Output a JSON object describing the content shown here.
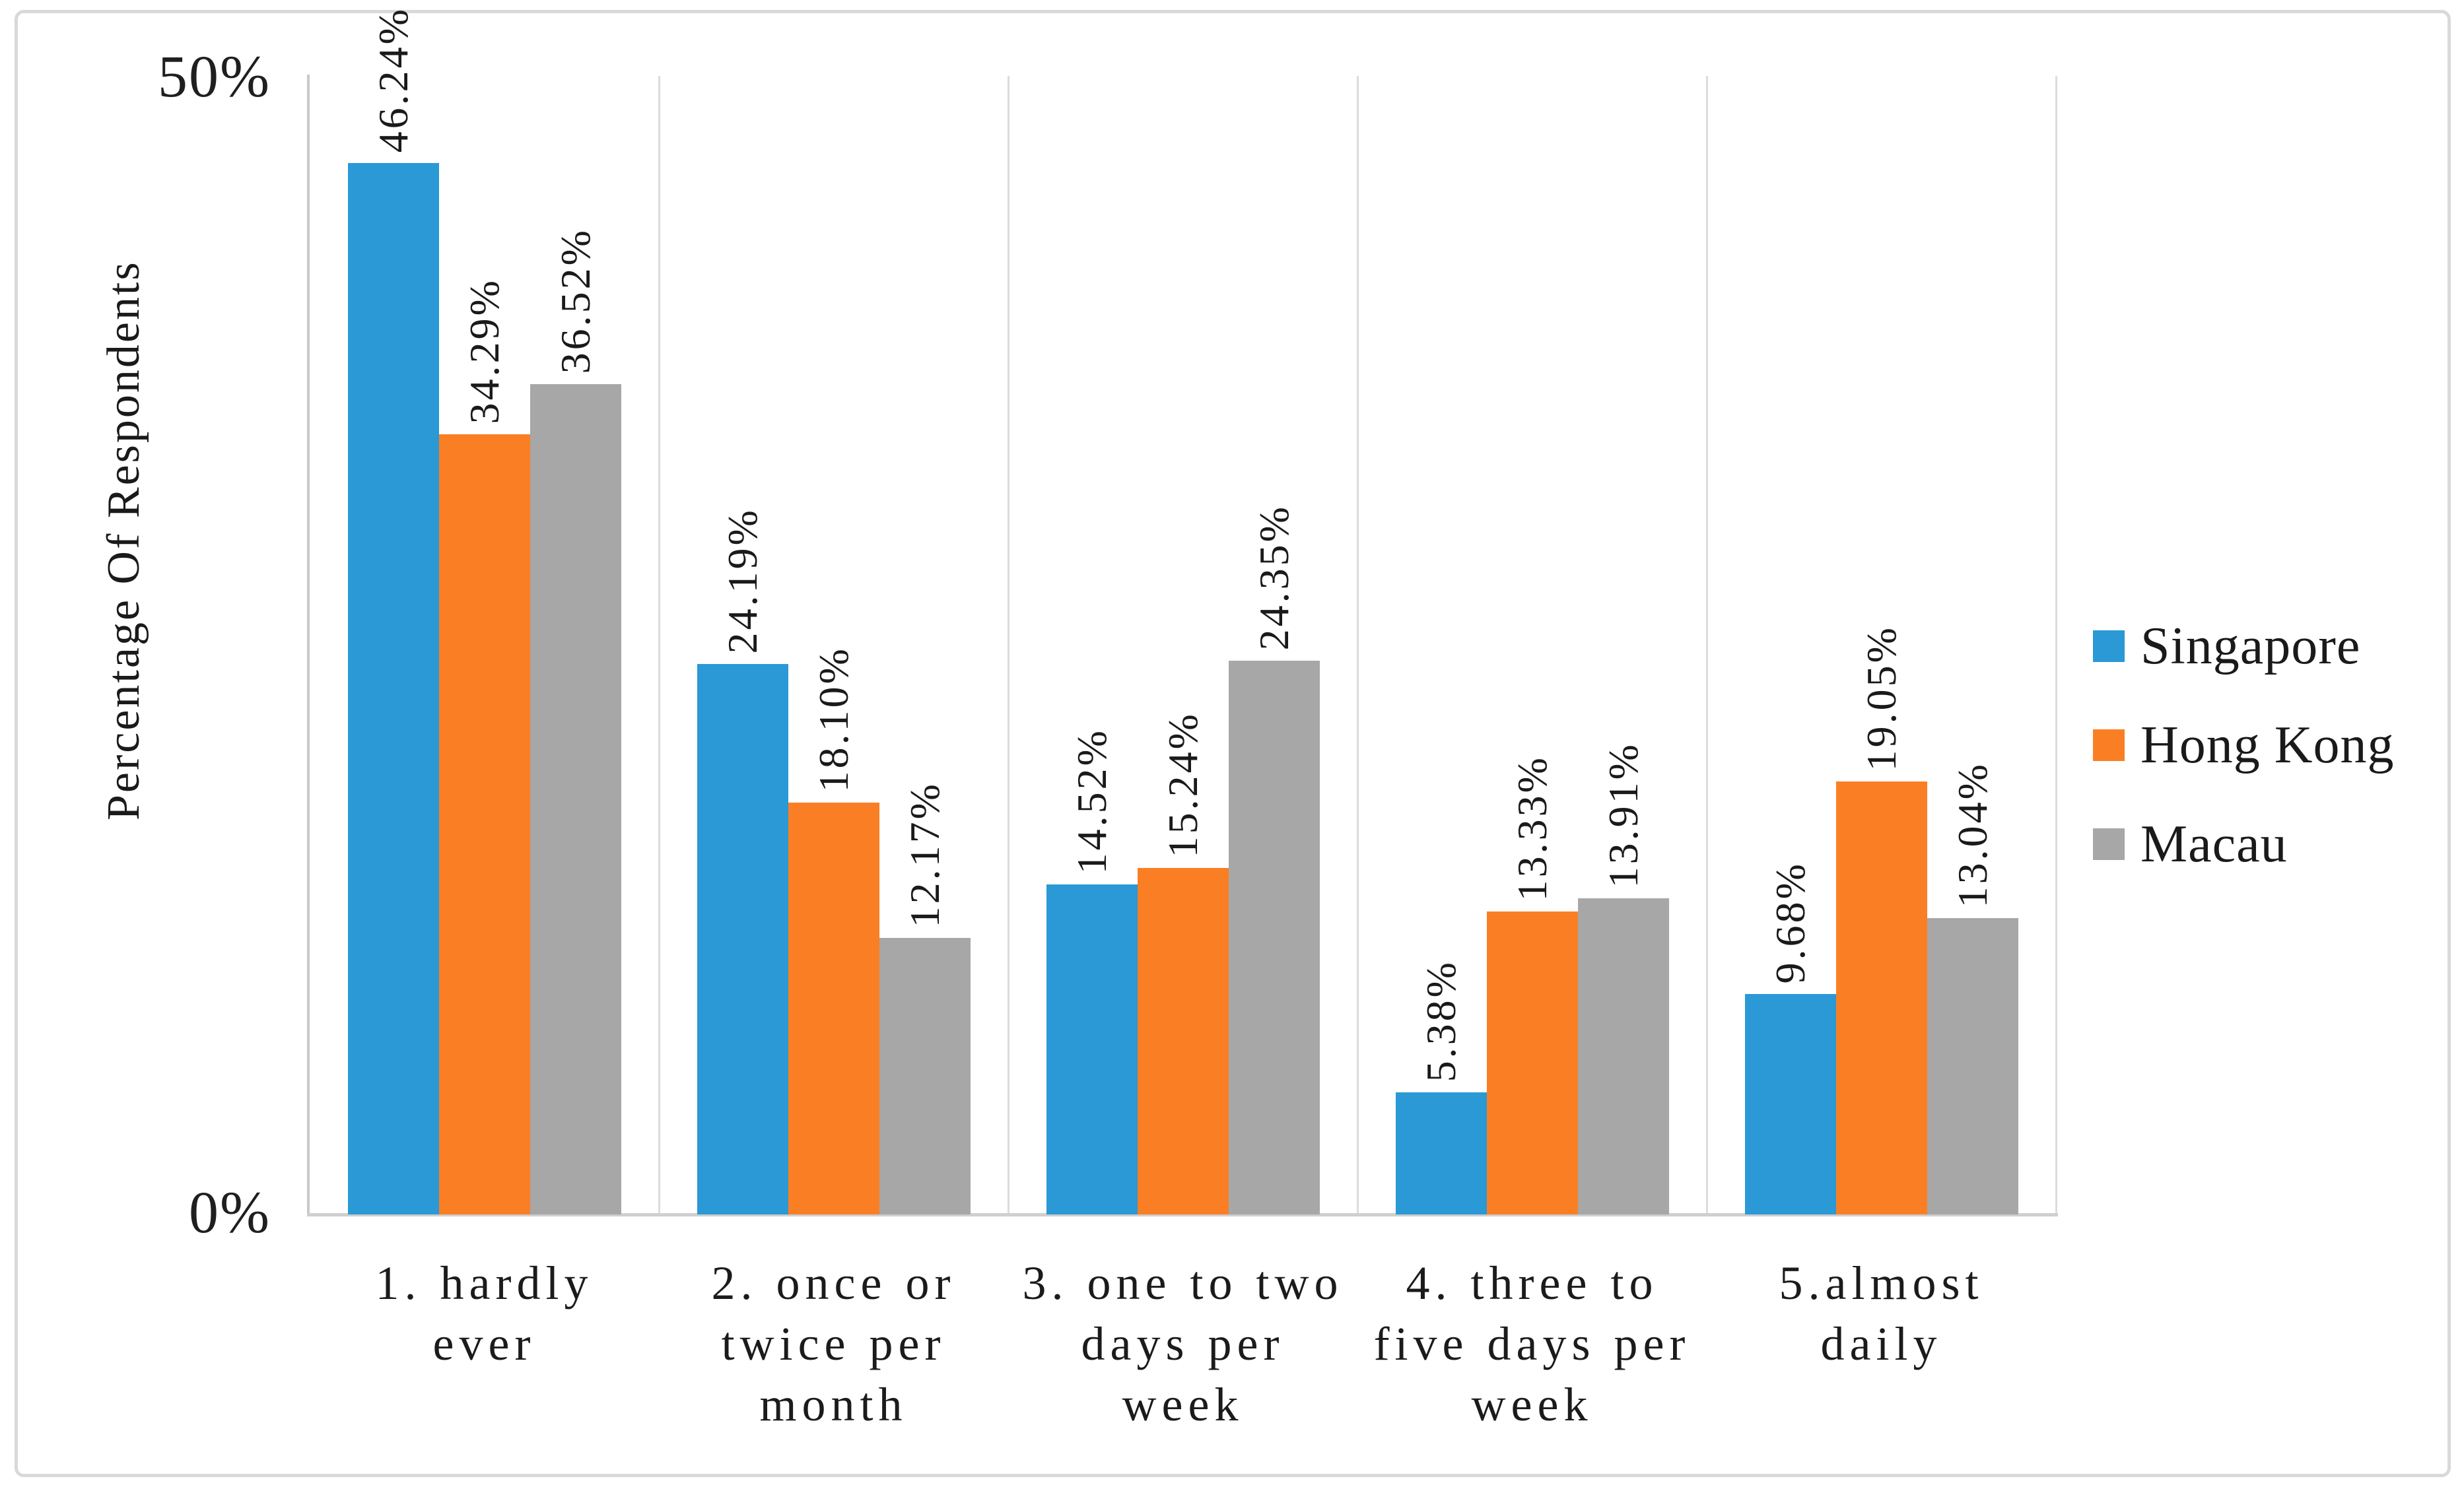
{
  "y_axis": {
    "title": "Percentage Of Respondents",
    "tick_max_label": "50%",
    "tick_min_label": "0%",
    "min": 0,
    "max": 50
  },
  "legend": {
    "position": "right",
    "items": [
      {
        "label": "Singapore",
        "color": "#2a99d6"
      },
      {
        "label": "Hong Kong",
        "color": "#fa7f24"
      },
      {
        "label": "Macau",
        "color": "#a7a7a7"
      }
    ]
  },
  "chart_data": {
    "type": "bar",
    "title": "",
    "xlabel": "",
    "ylabel": "Percentage Of Respondents",
    "ylim": [
      0,
      50
    ],
    "grid": "vertical-category-separators",
    "legend_position": "right",
    "label_format": "0.00%",
    "categories": [
      "1. hardly ever",
      "2. once or twice per month",
      "3. one to two days per week",
      "4. three to five days per week",
      "5.almost daily"
    ],
    "category_lines": [
      [
        "1. hardly",
        "ever"
      ],
      [
        "2. once or",
        "twice per",
        "month"
      ],
      [
        "3. one to two",
        "days per",
        "week"
      ],
      [
        "4. three to",
        "five days per",
        "week"
      ],
      [
        "5.almost",
        "daily"
      ]
    ],
    "series": [
      {
        "name": "Singapore",
        "color": "#2a99d6",
        "values": [
          46.24,
          24.19,
          14.52,
          5.38,
          9.68
        ]
      },
      {
        "name": "Hong Kong",
        "color": "#fa7f24",
        "values": [
          34.29,
          18.1,
          15.24,
          13.33,
          19.05
        ]
      },
      {
        "name": "Macau",
        "color": "#a7a7a7",
        "values": [
          36.52,
          12.17,
          24.35,
          13.91,
          13.04
        ]
      }
    ],
    "data_labels": [
      [
        "46.24%",
        "24.19%",
        "14.52%",
        "5.38%",
        "9.68%"
      ],
      [
        "34.29%",
        "18.10%",
        "15.24%",
        "13.33%",
        "19.05%"
      ],
      [
        "36.52%",
        "12.17%",
        "24.35%",
        "13.91%",
        "13.04%"
      ]
    ]
  },
  "colors": {
    "axis_line": "#c9c9c9",
    "separator_line": "#dcdcdc",
    "baseline": "#cfcfcf",
    "frame_border": "#d9d9d9",
    "text": "#1a1a1a"
  }
}
